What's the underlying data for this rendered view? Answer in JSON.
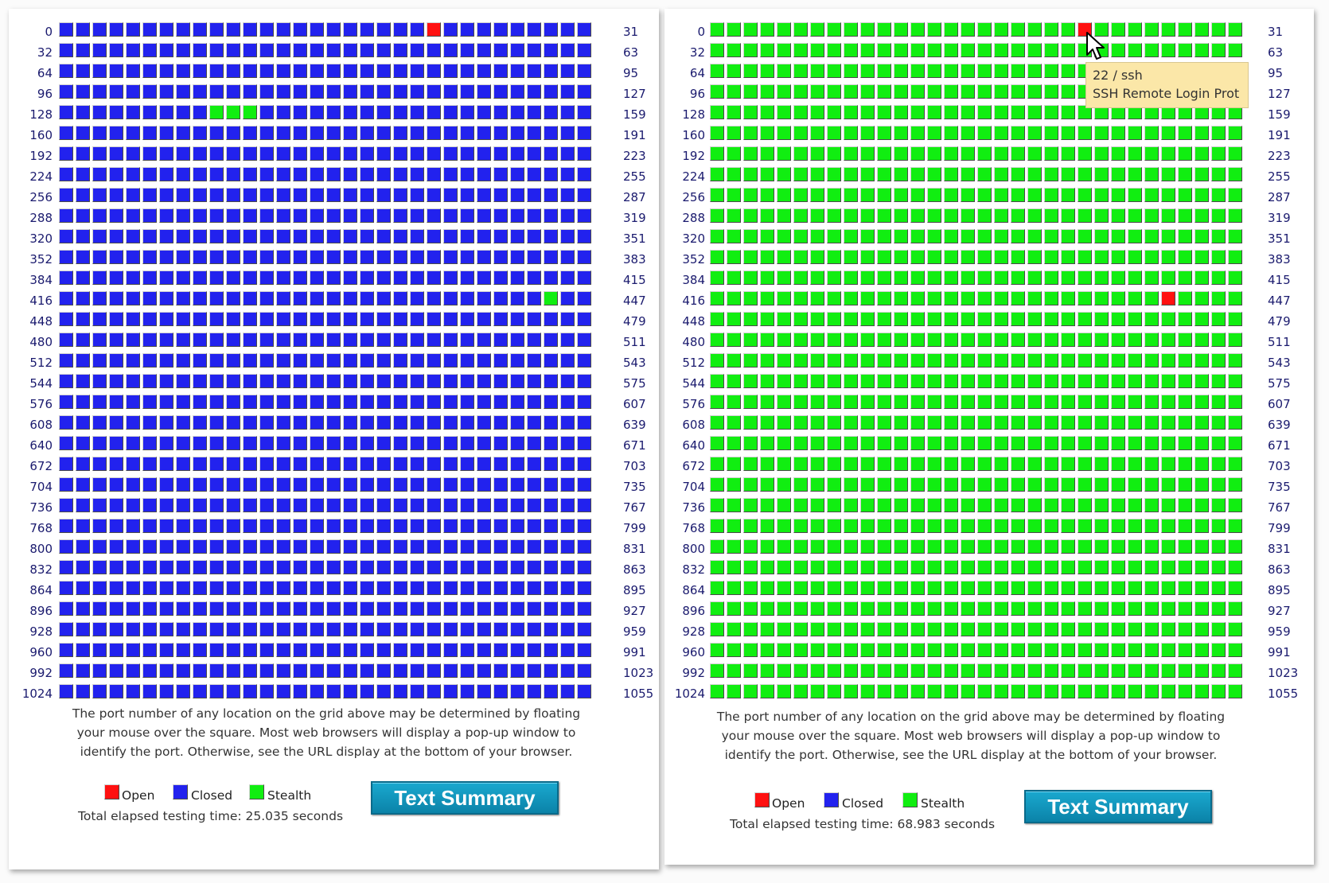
{
  "colors": {
    "open": "#ff1111",
    "closed": "#2222ee",
    "stealth": "#11ee11"
  },
  "grid": {
    "rows": 33,
    "cols": 32
  },
  "panels": [
    {
      "id": "left",
      "default_status": "closed",
      "exceptions": [
        {
          "port": 22,
          "status": "open"
        },
        {
          "port": 137,
          "status": "stealth"
        },
        {
          "port": 138,
          "status": "stealth"
        },
        {
          "port": 139,
          "status": "stealth"
        },
        {
          "port": 445,
          "status": "stealth"
        }
      ],
      "left_labels": [
        "0",
        "32",
        "64",
        "96",
        "128",
        "160",
        "192",
        "224",
        "256",
        "288",
        "320",
        "352",
        "384",
        "416",
        "448",
        "480",
        "512",
        "544",
        "576",
        "608",
        "640",
        "672",
        "704",
        "736",
        "768",
        "800",
        "832",
        "864",
        "896",
        "928",
        "960",
        "992",
        "1024"
      ],
      "right_labels": [
        "31",
        "63",
        "95",
        "127",
        "159",
        "191",
        "223",
        "255",
        "287",
        "319",
        "351",
        "383",
        "415",
        "447",
        "479",
        "511",
        "543",
        "575",
        "607",
        "639",
        "671",
        "703",
        "735",
        "767",
        "799",
        "831",
        "863",
        "895",
        "927",
        "959",
        "991",
        "1023",
        "1055"
      ],
      "description": [
        "The port number of any location on the grid above may be determined by floating",
        "your mouse over the square. Most web browsers will display a pop-up window to",
        "identify the port. Otherwise, see the URL display at the bottom of your browser."
      ],
      "legend": {
        "open": "Open",
        "closed": "Closed",
        "stealth": "Stealth"
      },
      "elapsed": "Total elapsed testing time: 25.035 seconds",
      "button_label": "Text Summary"
    },
    {
      "id": "right",
      "default_status": "stealth",
      "exceptions": [
        {
          "port": 22,
          "status": "open"
        },
        {
          "port": 443,
          "status": "open"
        }
      ],
      "left_labels": [
        "0",
        "32",
        "64",
        "96",
        "128",
        "160",
        "192",
        "224",
        "256",
        "288",
        "320",
        "352",
        "384",
        "416",
        "448",
        "480",
        "512",
        "544",
        "576",
        "608",
        "640",
        "672",
        "704",
        "736",
        "768",
        "800",
        "832",
        "864",
        "896",
        "928",
        "960",
        "992",
        "1024"
      ],
      "right_labels": [
        "31",
        "63",
        "95",
        "127",
        "159",
        "191",
        "223",
        "255",
        "287",
        "319",
        "351",
        "383",
        "415",
        "447",
        "479",
        "511",
        "543",
        "575",
        "607",
        "639",
        "671",
        "703",
        "735",
        "767",
        "799",
        "831",
        "863",
        "895",
        "927",
        "959",
        "991",
        "1023",
        "1055"
      ],
      "description": [
        "The port number of any location on the grid above may be determined by floating",
        "your mouse over the square. Most web browsers will display a pop-up window to",
        "identify the port. Otherwise, see the URL display at the bottom of your browser."
      ],
      "legend": {
        "open": "Open",
        "closed": "Closed",
        "stealth": "Stealth"
      },
      "elapsed": "Total elapsed testing time: 68.983 seconds",
      "button_label": "Text Summary"
    }
  ],
  "tooltip": {
    "line1": "22 / ssh",
    "line2": "SSH Remote Login Prot"
  }
}
